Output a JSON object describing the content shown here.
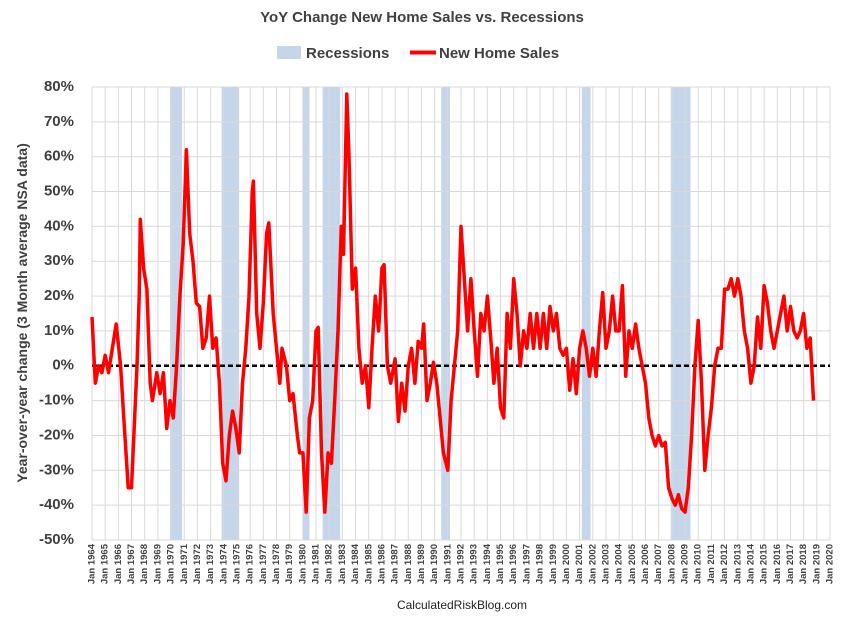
{
  "chart_data": {
    "type": "line",
    "title": "YoY Change New Home Sales vs. Recessions",
    "ylabel": "Year-over-year change (3 Month average NSA data)",
    "source": "CalculatedRiskBlog.com",
    "legend": "top",
    "grid": true,
    "ylim": [
      -50,
      80
    ],
    "yticks": [
      {
        "value": -50,
        "label": "-50%"
      },
      {
        "value": -40,
        "label": "-40%"
      },
      {
        "value": -30,
        "label": "-30%"
      },
      {
        "value": -20,
        "label": "-20%"
      },
      {
        "value": -10,
        "label": "-10%"
      },
      {
        "value": 0,
        "label": "0%"
      },
      {
        "value": 10,
        "label": "10%"
      },
      {
        "value": 20,
        "label": "20%"
      },
      {
        "value": 30,
        "label": "30%"
      },
      {
        "value": 40,
        "label": "40%"
      },
      {
        "value": 50,
        "label": "50%"
      },
      {
        "value": 60,
        "label": "60%"
      },
      {
        "value": 70,
        "label": "70%"
      },
      {
        "value": 80,
        "label": "80%"
      }
    ],
    "xlim": [
      "1964-01",
      "2020-01"
    ],
    "xticks": [
      {
        "value": "1964-01",
        "label": "Jan 1964"
      },
      {
        "value": "1965-01",
        "label": "Jan 1965"
      },
      {
        "value": "1966-01",
        "label": "Jan 1966"
      },
      {
        "value": "1967-01",
        "label": "Jan 1967"
      },
      {
        "value": "1968-01",
        "label": "Jan 1968"
      },
      {
        "value": "1969-01",
        "label": "Jan 1969"
      },
      {
        "value": "1970-01",
        "label": "Jan 1970"
      },
      {
        "value": "1971-01",
        "label": "Jan 1971"
      },
      {
        "value": "1972-01",
        "label": "Jan 1972"
      },
      {
        "value": "1973-01",
        "label": "Jan 1973"
      },
      {
        "value": "1974-01",
        "label": "Jan 1974"
      },
      {
        "value": "1975-01",
        "label": "Jan 1975"
      },
      {
        "value": "1976-01",
        "label": "Jan 1976"
      },
      {
        "value": "1977-01",
        "label": "Jan 1977"
      },
      {
        "value": "1978-01",
        "label": "Jan 1978"
      },
      {
        "value": "1979-01",
        "label": "Jan 1979"
      },
      {
        "value": "1980-01",
        "label": "Jan 1980"
      },
      {
        "value": "1981-01",
        "label": "Jan 1981"
      },
      {
        "value": "1982-01",
        "label": "Jan 1982"
      },
      {
        "value": "1983-01",
        "label": "Jan 1983"
      },
      {
        "value": "1984-01",
        "label": "Jan 1984"
      },
      {
        "value": "1985-01",
        "label": "Jan 1985"
      },
      {
        "value": "1986-01",
        "label": "Jan 1986"
      },
      {
        "value": "1987-01",
        "label": "Jan 1987"
      },
      {
        "value": "1988-01",
        "label": "Jan 1988"
      },
      {
        "value": "1989-01",
        "label": "Jan 1989"
      },
      {
        "value": "1990-01",
        "label": "Jan 1990"
      },
      {
        "value": "1991-01",
        "label": "Jan 1991"
      },
      {
        "value": "1992-01",
        "label": "Jan 1992"
      },
      {
        "value": "1993-01",
        "label": "Jan 1993"
      },
      {
        "value": "1994-01",
        "label": "Jan 1994"
      },
      {
        "value": "1995-01",
        "label": "Jan 1995"
      },
      {
        "value": "1996-01",
        "label": "Jan 1996"
      },
      {
        "value": "1997-01",
        "label": "Jan 1997"
      },
      {
        "value": "1998-01",
        "label": "Jan 1998"
      },
      {
        "value": "1999-01",
        "label": "Jan 1999"
      },
      {
        "value": "2000-01",
        "label": "Jan 2000"
      },
      {
        "value": "2001-01",
        "label": "Jan 2001"
      },
      {
        "value": "2002-01",
        "label": "Jan 2002"
      },
      {
        "value": "2003-01",
        "label": "Jan 2003"
      },
      {
        "value": "2004-01",
        "label": "Jan 2004"
      },
      {
        "value": "2005-01",
        "label": "Jan 2005"
      },
      {
        "value": "2006-01",
        "label": "Jan 2006"
      },
      {
        "value": "2007-01",
        "label": "Jan 2007"
      },
      {
        "value": "2008-01",
        "label": "Jan 2008"
      },
      {
        "value": "2009-01",
        "label": "Jan 2009"
      },
      {
        "value": "2010-01",
        "label": "Jan 2010"
      },
      {
        "value": "2011-01",
        "label": "Jan 2011"
      },
      {
        "value": "2012-01",
        "label": "Jan 2012"
      },
      {
        "value": "2013-01",
        "label": "Jan 2013"
      },
      {
        "value": "2014-01",
        "label": "Jan 2014"
      },
      {
        "value": "2015-01",
        "label": "Jan 2015"
      },
      {
        "value": "2016-01",
        "label": "Jan 2016"
      },
      {
        "value": "2017-01",
        "label": "Jan 2017"
      },
      {
        "value": "2018-01",
        "label": "Jan 2018"
      },
      {
        "value": "2019-01",
        "label": "Jan 2019"
      },
      {
        "value": "2020-01",
        "label": "Jan 2020"
      }
    ],
    "recessions": {
      "name": "Recessions",
      "color": "#c5d5ea",
      "periods": [
        [
          "1969-12",
          "1970-11"
        ],
        [
          "1973-11",
          "1975-03"
        ],
        [
          "1980-01",
          "1980-07"
        ],
        [
          "1981-07",
          "1982-11"
        ],
        [
          "1990-07",
          "1991-03"
        ],
        [
          "2001-03",
          "2001-11"
        ],
        [
          "2007-12",
          "2009-06"
        ]
      ]
    },
    "x": [
      "1964-01",
      "1964-04",
      "1964-07",
      "1964-10",
      "1965-01",
      "1965-04",
      "1965-11",
      "1966-03",
      "1966-06",
      "1966-10",
      "1967-01",
      "1967-06",
      "1967-08",
      "1967-09",
      "1967-12",
      "1968-03",
      "1968-06",
      "1968-08",
      "1968-12",
      "1969-03",
      "1969-06",
      "1969-09",
      "1969-12",
      "1970-03",
      "1970-06",
      "1970-09",
      "1970-12",
      "1971-03",
      "1971-06",
      "1971-09",
      "1971-12",
      "1972-03",
      "1972-06",
      "1972-09",
      "1972-12",
      "1973-03",
      "1973-06",
      "1973-09",
      "1973-12",
      "1974-03",
      "1974-06",
      "1974-09",
      "1974-12",
      "1975-03",
      "1975-06",
      "1975-09",
      "1975-12",
      "1976-03",
      "1976-04",
      "1976-07",
      "1976-10",
      "1977-01",
      "1977-04",
      "1977-06",
      "1977-10",
      "1978-01",
      "1978-04",
      "1978-06",
      "1978-10",
      "1979-01",
      "1979-04",
      "1979-08",
      "1979-10",
      "1980-01",
      "1980-04",
      "1980-07",
      "1980-10",
      "1981-01",
      "1981-03",
      "1981-06",
      "1981-09",
      "1981-12",
      "1982-03",
      "1982-06",
      "1982-09",
      "1982-12",
      "1983-02",
      "1983-05",
      "1983-07",
      "1983-10",
      "1984-01",
      "1984-04",
      "1984-07",
      "1984-10",
      "1985-01",
      "1985-04",
      "1985-07",
      "1985-10",
      "1986-01",
      "1986-03",
      "1986-06",
      "1986-09",
      "1987-01",
      "1987-04",
      "1987-07",
      "1987-10",
      "1988-01",
      "1988-04",
      "1988-07",
      "1988-10",
      "1989-01",
      "1989-03",
      "1989-06",
      "1989-09",
      "1989-12",
      "1990-03",
      "1990-06",
      "1990-09",
      "1991-01",
      "1991-04",
      "1991-07",
      "1991-10",
      "1992-01",
      "1992-04",
      "1992-07",
      "1992-10",
      "1993-01",
      "1993-04",
      "1993-07",
      "1993-10",
      "1994-01",
      "1994-04",
      "1994-07",
      "1994-10",
      "1995-01",
      "1995-04",
      "1995-07",
      "1995-10",
      "1996-01",
      "1996-04",
      "1996-07",
      "1996-10",
      "1997-01",
      "1997-04",
      "1997-07",
      "1997-10",
      "1998-01",
      "1998-04",
      "1998-07",
      "1998-10",
      "1999-01",
      "1999-04",
      "1999-07",
      "1999-10",
      "2000-01",
      "2000-04",
      "2000-07",
      "2000-10",
      "2001-01",
      "2001-04",
      "2001-07",
      "2001-10",
      "2002-01",
      "2002-04",
      "2002-07",
      "2002-10",
      "2003-01",
      "2003-04",
      "2003-07",
      "2003-10",
      "2004-01",
      "2004-04",
      "2004-07",
      "2004-10",
      "2005-01",
      "2005-04",
      "2005-07",
      "2005-10",
      "2006-01",
      "2006-04",
      "2006-07",
      "2006-10",
      "2007-01",
      "2007-04",
      "2007-07",
      "2007-10",
      "2008-01",
      "2008-04",
      "2008-07",
      "2008-10",
      "2009-01",
      "2009-04",
      "2009-07",
      "2009-10",
      "2010-01",
      "2010-04",
      "2010-07",
      "2010-10",
      "2011-01",
      "2011-04",
      "2011-07",
      "2011-10",
      "2012-01",
      "2012-04",
      "2012-07",
      "2012-10",
      "2013-01",
      "2013-04",
      "2013-07",
      "2013-10",
      "2014-01",
      "2014-04",
      "2014-07",
      "2014-10",
      "2015-01",
      "2015-04",
      "2015-07",
      "2015-10",
      "2016-01",
      "2016-04",
      "2016-07",
      "2016-10",
      "2017-01",
      "2017-04",
      "2017-07",
      "2017-10",
      "2018-01",
      "2018-04",
      "2018-07",
      "2018-10"
    ],
    "series": [
      {
        "name": "New Home Sales",
        "color": "#ff0000",
        "values": [
          14,
          -5,
          0,
          -2,
          3,
          -2,
          12,
          0,
          -15,
          -35,
          -35,
          0,
          20,
          42,
          28,
          22,
          -5,
          -10,
          -2,
          -8,
          -2,
          -18,
          -10,
          -15,
          0,
          20,
          35,
          62,
          38,
          30,
          18,
          17,
          5,
          8,
          20,
          5,
          8,
          -5,
          -28,
          -33,
          -20,
          -13,
          -18,
          -25,
          -5,
          5,
          20,
          50,
          53,
          15,
          5,
          18,
          38,
          41,
          15,
          5,
          -5,
          5,
          0,
          -10,
          -8,
          -20,
          -25,
          -25,
          -42,
          -15,
          -10,
          10,
          11,
          -25,
          -42,
          -25,
          -28,
          -10,
          10,
          40,
          32,
          78,
          60,
          22,
          28,
          5,
          -5,
          0,
          -12,
          5,
          20,
          10,
          28,
          29,
          0,
          -5,
          2,
          -16,
          -5,
          -13,
          0,
          5,
          -5,
          7,
          5,
          12,
          -10,
          -5,
          1,
          -5,
          -15,
          -25,
          -30,
          -10,
          0,
          10,
          40,
          25,
          10,
          25,
          10,
          -3,
          15,
          10,
          20,
          8,
          -5,
          5,
          -12,
          -15,
          15,
          5,
          25,
          15,
          0,
          10,
          5,
          15,
          5,
          15,
          5,
          15,
          5,
          17,
          10,
          15,
          5,
          3,
          5,
          -7,
          2,
          -8,
          5,
          10,
          5,
          -3,
          5,
          -3,
          10,
          21,
          5,
          10,
          20,
          10,
          10,
          23,
          -3,
          10,
          5,
          12,
          5,
          0,
          -5,
          -15,
          -20,
          -23,
          -20,
          -23,
          -22,
          -35,
          -38,
          -40,
          -37,
          -41,
          -42,
          -35,
          -20,
          0,
          13,
          -5,
          -30,
          -20,
          -12,
          0,
          5,
          5,
          22,
          22,
          25,
          20,
          25,
          20,
          10,
          5,
          -5,
          0,
          14,
          5,
          23,
          18,
          10,
          5,
          10,
          15,
          20,
          10,
          17,
          10,
          8,
          10,
          15,
          5,
          8,
          -10
        ]
      }
    ]
  }
}
